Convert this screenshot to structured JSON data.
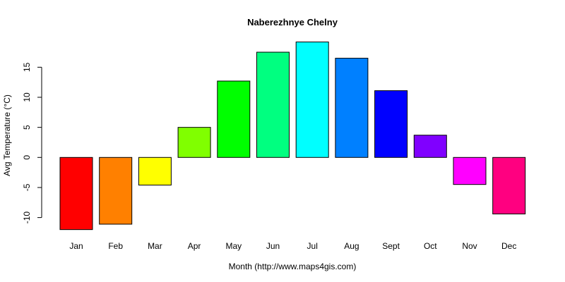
{
  "chart_data": {
    "type": "bar",
    "title": "Naberezhnye Chelny",
    "xlabel": "Month (http://www.maps4gis.com)",
    "ylabel": "Avg Temperature (°C)",
    "categories": [
      "Jan",
      "Feb",
      "Mar",
      "Apr",
      "May",
      "Jun",
      "Jul",
      "Aug",
      "Sept",
      "Oct",
      "Nov",
      "Dec"
    ],
    "values": [
      -12.0,
      -11.1,
      -4.6,
      5.0,
      12.7,
      17.5,
      19.2,
      16.5,
      11.1,
      3.7,
      -4.5,
      -9.4
    ],
    "colors": [
      "#FF0000",
      "#FF8000",
      "#FFFF00",
      "#80FF00",
      "#00FF00",
      "#00FF80",
      "#00FFFF",
      "#0080FF",
      "#0000FF",
      "#8000FF",
      "#FF00FF",
      "#FF0080"
    ],
    "yticks": [
      -10,
      -5,
      0,
      5,
      10,
      15
    ],
    "ylim": [
      -12,
      19.2
    ],
    "grid": false,
    "legend": "none"
  }
}
